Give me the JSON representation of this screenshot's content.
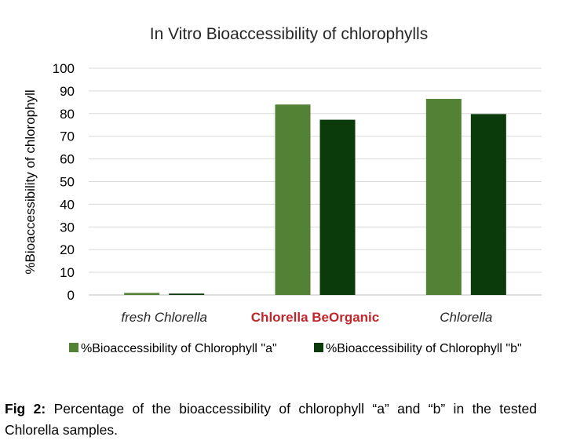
{
  "chart_data": {
    "type": "bar",
    "title": "In Vitro Bioaccessibility of chlorophylls",
    "xlabel": "",
    "ylabel": "%Bioaccessibility of chlorophyll",
    "ylim": [
      0,
      100
    ],
    "yticks": [
      0,
      10,
      20,
      30,
      40,
      50,
      60,
      70,
      80,
      90,
      100
    ],
    "grid": true,
    "legend_position": "bottom",
    "categories": [
      "fresh Chlorella",
      "Chlorella BeOrganic",
      "Chlorella"
    ],
    "category_styles": [
      {
        "italic": true,
        "bold": false,
        "color": "#262626"
      },
      {
        "italic": false,
        "bold": true,
        "color": "#c0272d"
      },
      {
        "italic": true,
        "bold": false,
        "color": "#262626"
      }
    ],
    "series": [
      {
        "name": "%Bioaccessibility of Chlorophyll \"a\"",
        "values": [
          0.9,
          84,
          86.5
        ],
        "color": "#548235"
      },
      {
        "name": "%Bioaccessibility of Chlorophyll \"b\"",
        "values": [
          0.6,
          77.3,
          79.8
        ],
        "color": "#0b3a0b"
      }
    ]
  },
  "caption": {
    "label": "Fig 2:",
    "text": "Percentage of the bioaccessibility of chlorophyll “a” and “b” in the tested Chlorella samples."
  }
}
